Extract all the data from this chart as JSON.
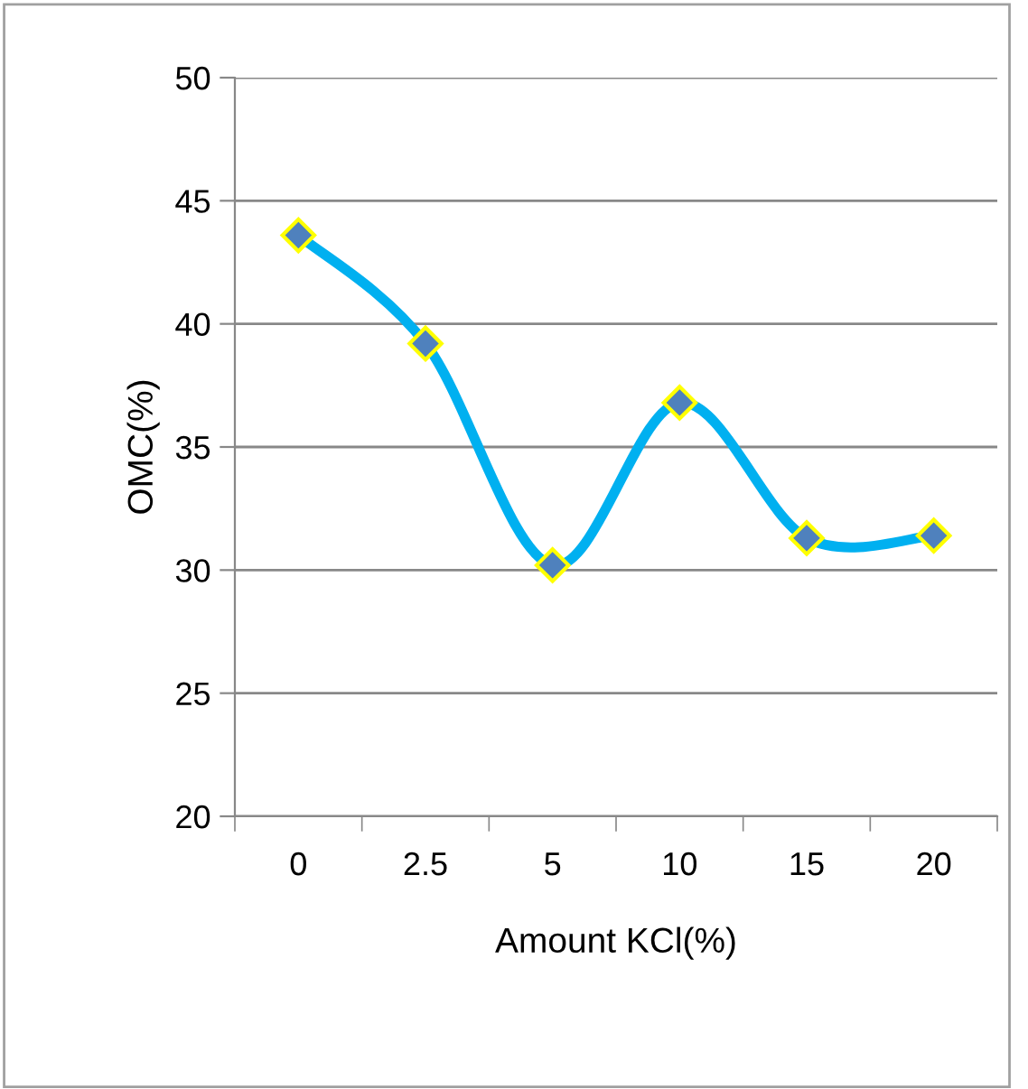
{
  "chart_data": {
    "type": "line",
    "xlabel": "Amount KCl(%)",
    "ylabel": "OMC(%)",
    "categories": [
      "0",
      "2.5",
      "5",
      "10",
      "15",
      "20"
    ],
    "series": [
      {
        "color": "#00b0f0",
        "values": [
          43.6,
          39.2,
          30.2,
          36.8,
          31.3,
          31.4
        ]
      }
    ],
    "ylim": [
      20,
      50
    ],
    "yticks": [
      20,
      25,
      30,
      35,
      40,
      45,
      50
    ],
    "grid": "y",
    "marker": "diamond",
    "line_style": "solid",
    "legend": false
  }
}
